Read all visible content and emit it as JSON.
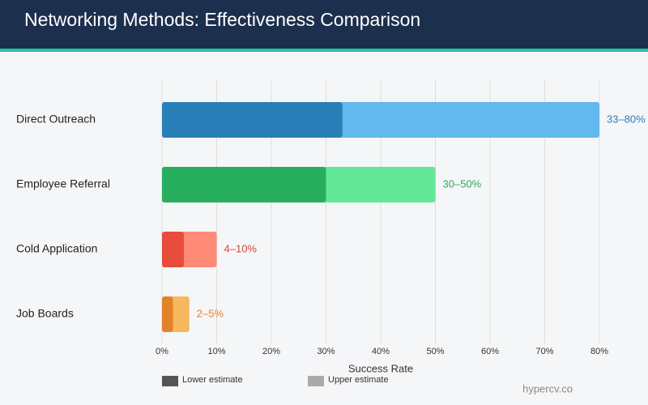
{
  "chart_data": {
    "type": "range-bar",
    "title": "Networking Methods: Effectiveness Comparison",
    "xlabel": "Success Rate",
    "source": "hypercv.co",
    "categories": [
      "Direct Outreach",
      "Employee Referral",
      "Cold Application",
      "Job Boards"
    ],
    "series": [
      {
        "name": "Lower estimate",
        "color": "#555555",
        "colors": [
          "#2a7fb8",
          "#28ae5f",
          "#e74c3c",
          "#e2822a"
        ],
        "values": [
          33,
          30,
          4,
          2
        ]
      },
      {
        "name": "Upper estimate",
        "color": "#aaaaaa",
        "colors": [
          "#63b8f0",
          "#63e89a",
          "#ff8a78",
          "#f6b85d"
        ],
        "values": [
          80,
          50,
          10,
          5
        ],
        "value_labels": [
          "33–80%",
          "30–50%",
          "4–10%",
          "2–5%"
        ],
        "label_colors": [
          "#2a7fb8",
          "#28ae5f",
          "#d64535",
          "#e2822a"
        ]
      }
    ],
    "xlim": [
      0,
      80
    ],
    "xticks": [
      {
        "value": 0,
        "label": "0%"
      },
      {
        "value": 10,
        "label": "10%"
      },
      {
        "value": 20,
        "label": "20%"
      },
      {
        "value": 30,
        "label": "30%"
      },
      {
        "value": 40,
        "label": "40%"
      },
      {
        "value": 50,
        "label": "50%"
      },
      {
        "value": 60,
        "label": "60%"
      },
      {
        "value": 70,
        "label": "70%"
      },
      {
        "value": 80,
        "label": "80%"
      }
    ],
    "grid": true
  }
}
